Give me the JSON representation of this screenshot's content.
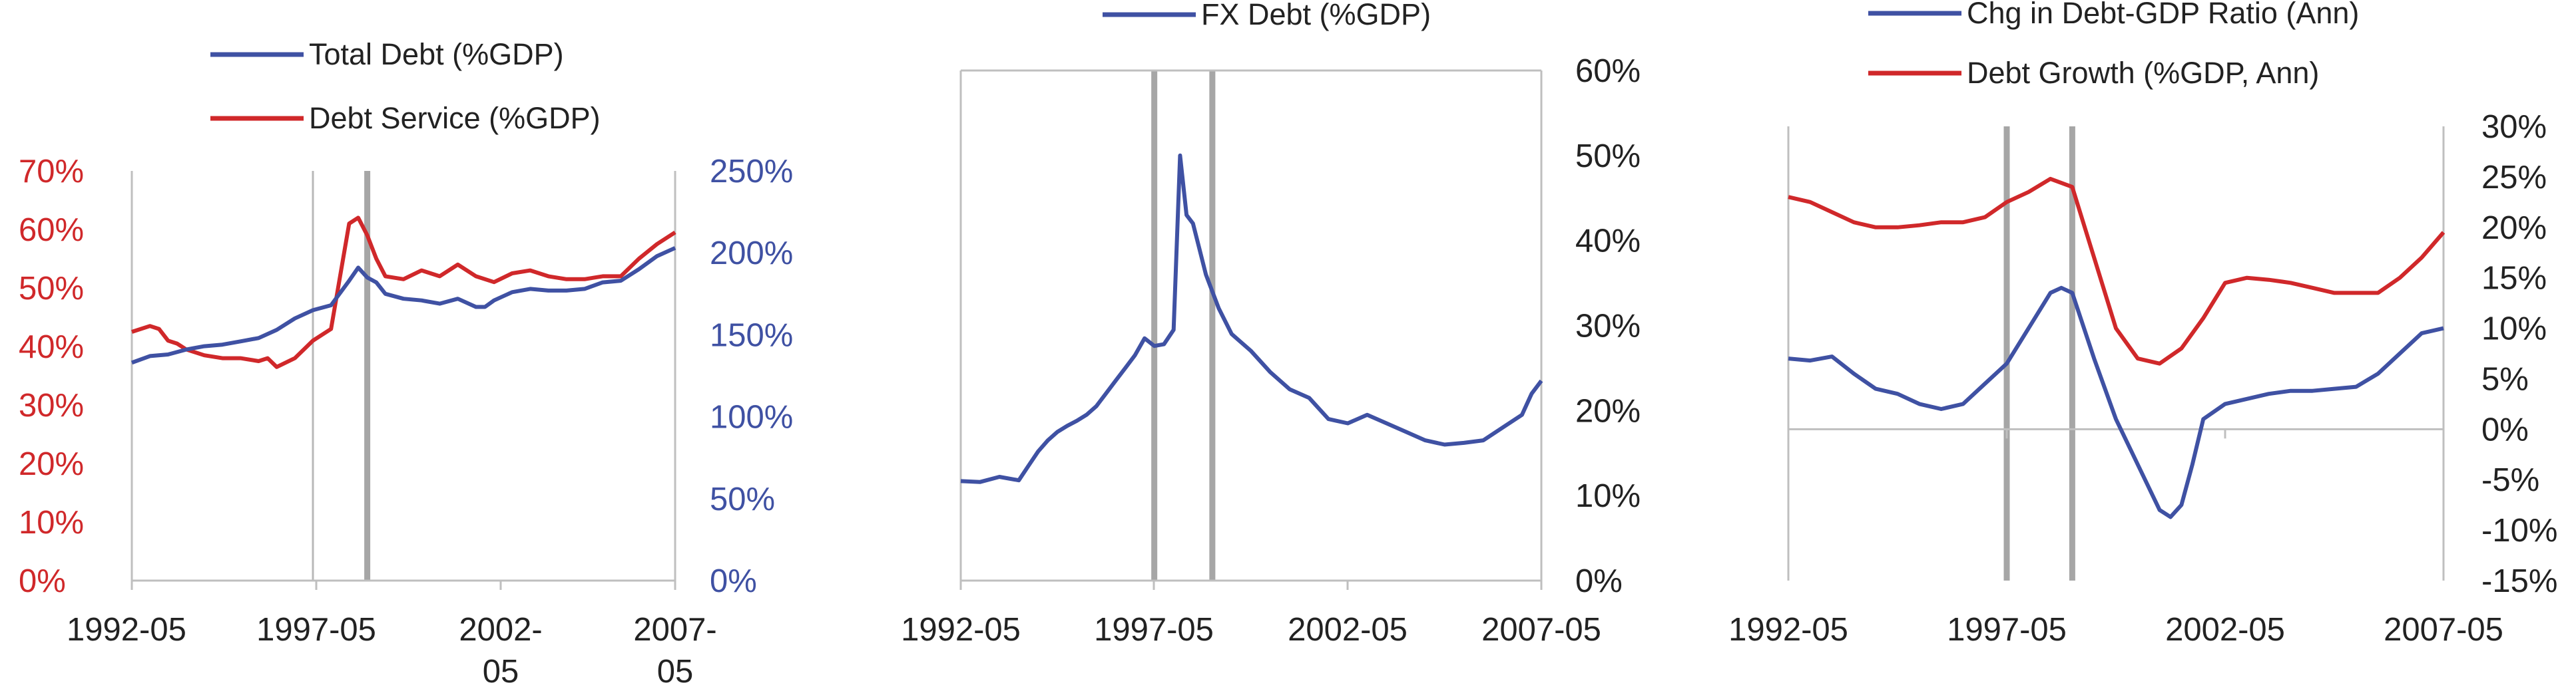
{
  "colors": {
    "blue": "#3f51a3",
    "red": "#d0282a"
  },
  "chart_data": [
    {
      "type": "line",
      "legend_placement": "top",
      "x_ticks": [
        "1992-05",
        "1997-05",
        "2002-",
        "2007-"
      ],
      "x_ticks_line2": [
        "",
        "",
        "05",
        "05"
      ],
      "xlim": [
        "1992-05",
        "2007-05"
      ],
      "y_left": {
        "ticks": [
          "0%",
          "10%",
          "20%",
          "30%",
          "40%",
          "50%",
          "60%",
          "70%"
        ],
        "range": [
          0,
          70
        ],
        "color": "#d0282a"
      },
      "y_right": {
        "ticks": [
          "0%",
          "50%",
          "100%",
          "150%",
          "200%",
          "250%"
        ],
        "range": [
          0,
          250
        ],
        "color": "#3f51a3"
      },
      "event_lines": {
        "thin": "1997-05",
        "thick": "1998-11"
      },
      "series": [
        {
          "name": "Total Debt (%GDP)",
          "axis": "right",
          "color": "#3f51a3",
          "x": [
            "1992-05",
            "1992-11",
            "1993-05",
            "1993-11",
            "1994-05",
            "1994-11",
            "1995-05",
            "1995-11",
            "1996-05",
            "1996-11",
            "1997-05",
            "1997-11",
            "1998-05",
            "1998-08",
            "1998-11",
            "1999-02",
            "1999-05",
            "1999-11",
            "2000-05",
            "2000-11",
            "2001-05",
            "2001-11",
            "2002-02",
            "2002-05",
            "2002-11",
            "2003-05",
            "2003-11",
            "2004-05",
            "2004-11",
            "2005-05",
            "2005-11",
            "2006-05",
            "2006-11",
            "2007-05"
          ],
          "y": [
            133,
            137,
            138,
            141,
            143,
            144,
            146,
            148,
            153,
            160,
            165,
            168,
            183,
            191,
            185,
            182,
            175,
            172,
            171,
            169,
            172,
            167,
            167,
            171,
            176,
            178,
            177,
            177,
            178,
            182,
            183,
            190,
            198,
            203
          ]
        },
        {
          "name": "Debt Service (%GDP)",
          "axis": "left",
          "color": "#d0282a",
          "x": [
            "1992-05",
            "1992-11",
            "1993-02",
            "1993-05",
            "1993-08",
            "1993-11",
            "1994-05",
            "1994-11",
            "1995-05",
            "1995-11",
            "1996-02",
            "1996-05",
            "1996-11",
            "1997-05",
            "1997-11",
            "1998-02",
            "1998-05",
            "1998-08",
            "1998-11",
            "1999-02",
            "1999-05",
            "1999-11",
            "2000-05",
            "2000-11",
            "2001-05",
            "2001-11",
            "2002-05",
            "2002-11",
            "2003-05",
            "2003-11",
            "2004-05",
            "2004-11",
            "2005-05",
            "2005-11",
            "2006-05",
            "2006-11",
            "2007-05"
          ],
          "y": [
            42.5,
            43.5,
            43,
            41,
            40.5,
            39.5,
            38.5,
            38,
            38,
            37.5,
            38,
            36.5,
            38,
            41,
            43,
            52,
            61,
            62,
            59,
            55,
            52,
            51.5,
            53,
            52,
            54,
            52,
            51,
            52.5,
            53,
            52,
            51.5,
            51.5,
            52,
            52,
            55,
            57.5,
            59.5
          ]
        }
      ]
    },
    {
      "type": "line",
      "legend_placement": "top",
      "x_ticks": [
        "1992-05",
        "1997-05",
        "2002-05",
        "2007-05"
      ],
      "xlim": [
        "1992-05",
        "2007-05"
      ],
      "y_right": {
        "ticks": [
          "0%",
          "10%",
          "20%",
          "30%",
          "40%",
          "50%",
          "60%"
        ],
        "range": [
          0,
          60
        ]
      },
      "event_lines": {
        "thick": [
          "1997-05",
          "1998-11"
        ]
      },
      "series": [
        {
          "name": "FX Debt (%GDP)",
          "color": "#3f51a3",
          "x": [
            "1992-05",
            "1992-11",
            "1993-05",
            "1993-11",
            "1994-02",
            "1994-05",
            "1994-08",
            "1994-11",
            "1995-02",
            "1995-05",
            "1995-08",
            "1995-11",
            "1996-02",
            "1996-05",
            "1996-08",
            "1996-11",
            "1997-02",
            "1997-05",
            "1997-08",
            "1997-11",
            "1998-01",
            "1998-03",
            "1998-05",
            "1998-07",
            "1998-09",
            "1998-11",
            "1999-01",
            "1999-05",
            "1999-11",
            "2000-05",
            "2000-11",
            "2001-05",
            "2001-11",
            "2002-05",
            "2002-11",
            "2003-05",
            "2003-11",
            "2004-05",
            "2004-11",
            "2005-05",
            "2005-11",
            "2006-05",
            "2006-11",
            "2007-02",
            "2007-05"
          ],
          "y": [
            11.7,
            11.6,
            12.2,
            11.8,
            13.5,
            15.2,
            16.5,
            17.5,
            18.2,
            18.8,
            19.5,
            20.5,
            22,
            23.5,
            25,
            26.5,
            28.5,
            27.6,
            27.8,
            29.5,
            50,
            43,
            42,
            39,
            36,
            34,
            32,
            29,
            27,
            24.5,
            22.5,
            21.5,
            19,
            18.5,
            19.5,
            18.5,
            17.5,
            16.5,
            16,
            16.2,
            16.5,
            18,
            19.5,
            22,
            23.5
          ]
        }
      ]
    },
    {
      "type": "line",
      "legend_placement": "top",
      "x_ticks": [
        "1992-05",
        "1997-05",
        "2002-05",
        "2007-05"
      ],
      "xlim": [
        "1992-05",
        "2007-05"
      ],
      "y_right": {
        "ticks": [
          "-15%",
          "-10%",
          "-5%",
          "0%",
          "5%",
          "10%",
          "15%",
          "20%",
          "25%",
          "30%"
        ],
        "range": [
          -15,
          30
        ]
      },
      "event_lines": {
        "thick": [
          "1997-05",
          "1998-11"
        ]
      },
      "series": [
        {
          "name": "Chg in Debt-GDP Ratio (Ann)",
          "color": "#3f51a3",
          "x": [
            "1992-05",
            "1992-11",
            "1993-05",
            "1993-11",
            "1994-05",
            "1994-11",
            "1995-05",
            "1995-11",
            "1996-05",
            "1996-11",
            "1997-05",
            "1997-11",
            "1998-05",
            "1998-08",
            "1998-11",
            "1999-05",
            "1999-11",
            "2000-05",
            "2000-11",
            "2001-02",
            "2001-05",
            "2001-08",
            "2001-11",
            "2002-05",
            "2002-11",
            "2003-05",
            "2003-11",
            "2004-05",
            "2004-11",
            "2005-05",
            "2005-11",
            "2006-05",
            "2006-11",
            "2007-05"
          ],
          "y": [
            7,
            6.8,
            7.2,
            5.5,
            4,
            3.5,
            2.5,
            2,
            2.5,
            4.5,
            6.5,
            10,
            13.5,
            14,
            13.5,
            7,
            1,
            -3.5,
            -8,
            -8.7,
            -7.5,
            -3.5,
            1,
            2.5,
            3,
            3.5,
            3.8,
            3.8,
            4,
            4.2,
            5.5,
            7.5,
            9.5,
            10
          ]
        },
        {
          "name": "Debt Growth (%GDP, Ann)",
          "color": "#d0282a",
          "x": [
            "1992-05",
            "1992-11",
            "1993-05",
            "1993-11",
            "1994-05",
            "1994-11",
            "1995-05",
            "1995-11",
            "1996-05",
            "1996-11",
            "1997-05",
            "1997-11",
            "1998-05",
            "1998-11",
            "1999-05",
            "1999-11",
            "2000-05",
            "2000-11",
            "2001-05",
            "2001-11",
            "2002-05",
            "2002-11",
            "2003-05",
            "2003-11",
            "2004-05",
            "2004-11",
            "2005-05",
            "2005-11",
            "2006-05",
            "2006-11",
            "2007-05"
          ],
          "y": [
            23,
            22.5,
            21.5,
            20.5,
            20,
            20,
            20.2,
            20.5,
            20.5,
            21,
            22.5,
            23.5,
            24.8,
            24,
            17,
            10,
            7,
            6.5,
            8,
            11,
            14.5,
            15,
            14.8,
            14.5,
            14,
            13.5,
            13.5,
            13.5,
            15,
            17,
            19.5
          ]
        }
      ]
    }
  ]
}
